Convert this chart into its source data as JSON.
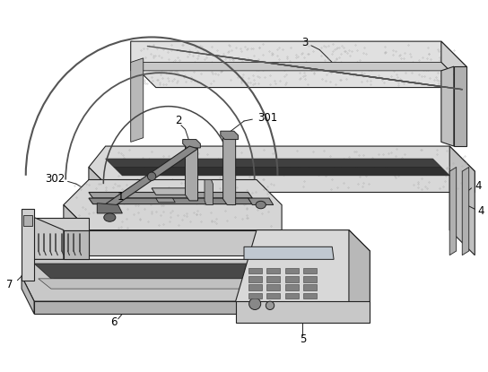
{
  "background_color": "#ffffff",
  "line_color": "#222222",
  "dark_color": "#111111",
  "gray1": "#e8e8e8",
  "gray2": "#d0d0d0",
  "gray3": "#b8b8b8",
  "gray4": "#909090",
  "gray5": "#606060",
  "gray6": "#404040",
  "dot_color": "#cccccc",
  "labels": [
    "1",
    "2",
    "3",
    "4",
    "5",
    "6",
    "7",
    "301",
    "302"
  ]
}
